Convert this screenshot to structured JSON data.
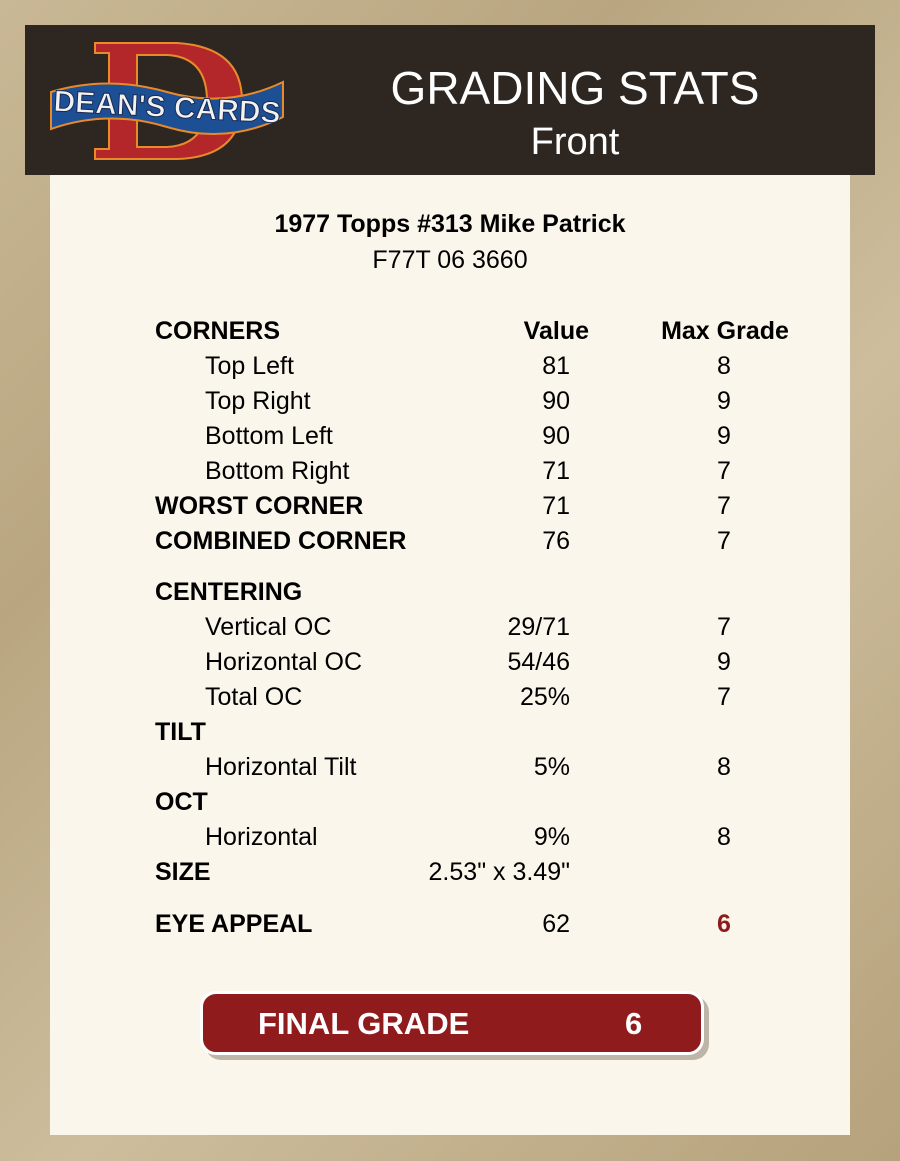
{
  "header": {
    "logo_text": "DEAN'S CARDS",
    "title": "GRADING STATS",
    "subtitle": "Front"
  },
  "card": {
    "name": "1977 Topps #313 Mike Patrick",
    "cert": "F77T 06 3660"
  },
  "columns": {
    "value": "Value",
    "max_grade": "Max Grade"
  },
  "rows": [
    {
      "type": "section",
      "label": "CORNERS"
    },
    {
      "type": "item",
      "label": "Top Left",
      "value": "81",
      "max": "8"
    },
    {
      "type": "item",
      "label": "Top Right",
      "value": "90",
      "max": "9"
    },
    {
      "type": "item",
      "label": "Bottom Left",
      "value": "90",
      "max": "9"
    },
    {
      "type": "item",
      "label": "Bottom Right",
      "value": "71",
      "max": "7"
    },
    {
      "type": "section",
      "label": "WORST CORNER",
      "value": "71",
      "max": "7"
    },
    {
      "type": "section",
      "label": "COMBINED CORNER",
      "value": "76",
      "max": "7"
    },
    {
      "type": "section",
      "label": "CENTERING"
    },
    {
      "type": "item",
      "label": "Vertical OC",
      "value": "29/71",
      "max": "7"
    },
    {
      "type": "item",
      "label": "Horizontal OC",
      "value": "54/46",
      "max": "9"
    },
    {
      "type": "item",
      "label": "Total OC",
      "value": "25%",
      "max": "7"
    },
    {
      "type": "section",
      "label": "TILT"
    },
    {
      "type": "item",
      "label": "Horizontal Tilt",
      "value": "5%",
      "max": "8"
    },
    {
      "type": "section",
      "label": "OCT"
    },
    {
      "type": "item",
      "label": "Horizontal",
      "value": "9%",
      "max": "8"
    },
    {
      "type": "section",
      "label": "SIZE",
      "value": "2.53\" x 3.49\""
    },
    {
      "type": "section",
      "label": "EYE APPEAL",
      "value": "62",
      "max": "6",
      "highlight": true
    }
  ],
  "final": {
    "label": "FINAL GRADE",
    "value": "6"
  },
  "colors": {
    "header_bg": "#2e2620",
    "final_bg": "#901b1d",
    "highlight": "#8e1b1b"
  }
}
